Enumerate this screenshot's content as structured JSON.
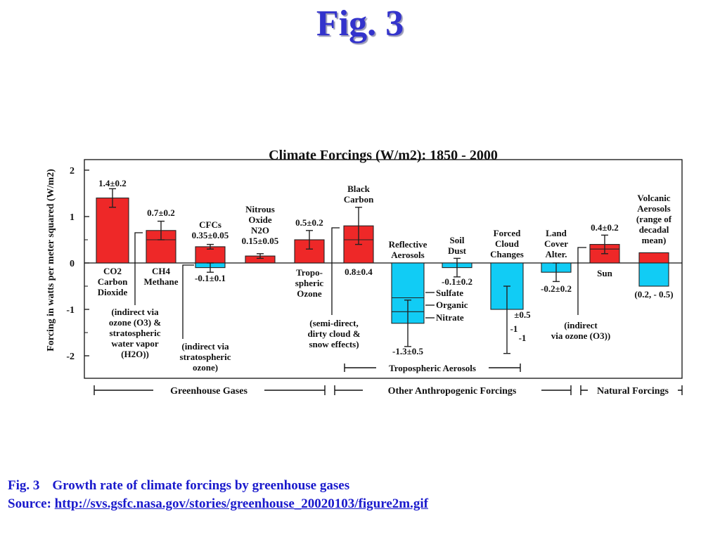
{
  "slide": {
    "title": "Fig. 3",
    "caption_number": "Fig. 3",
    "caption_text": "Growth rate of climate forcings by greenhouse gases",
    "source_label": "Source:",
    "source_url": "http://svs.gsfc.nasa.gov/stories/greenhouse_20020103/figure2m.gif"
  },
  "colors": {
    "positive": "#ee2828",
    "negative": "#11ccf5",
    "title": "#3333cc"
  },
  "chart_data": {
    "type": "bar",
    "title": "Climate Forcings (W/m2): 1850 - 2000",
    "ylabel": "Forcing in watts per meter squared (W/m2)",
    "ylim": [
      -2.5,
      2
    ],
    "yticks": [
      2,
      1,
      0,
      -1,
      -2
    ],
    "bars": [
      {
        "id": "co2",
        "value": 1.4,
        "err": 0.2,
        "color": "positive"
      },
      {
        "id": "ch4",
        "value": 0.7,
        "err": 0.2,
        "color": "positive",
        "mid": 0.5
      },
      {
        "id": "cfcs",
        "value": 0.35,
        "err": 0.05,
        "color": "positive"
      },
      {
        "id": "cfcs-ozone",
        "value": -0.1,
        "err": 0.1,
        "color": "negative"
      },
      {
        "id": "n2o",
        "value": 0.15,
        "err": 0.05,
        "color": "positive"
      },
      {
        "id": "trop-ozone",
        "value": 0.5,
        "err": 0.2,
        "color": "positive"
      },
      {
        "id": "black-carbon",
        "value": 0.8,
        "err": 0.4,
        "color": "positive",
        "mid": 0.5
      },
      {
        "id": "reflective-aerosols",
        "value": -1.3,
        "err": 0.5,
        "color": "negative",
        "segments": [
          -0.75,
          -1.05
        ]
      },
      {
        "id": "soil-dust",
        "value": -0.1,
        "err": 0.2,
        "color": "negative"
      },
      {
        "id": "forced-cloud",
        "value": -1.0,
        "err_low": -1.95,
        "err_high": -0.5,
        "color": "negative"
      },
      {
        "id": "land-cover",
        "value": -0.2,
        "err": 0.2,
        "color": "negative"
      },
      {
        "id": "sun",
        "value": 0.4,
        "err": 0.2,
        "color": "positive",
        "mid": 0.3
      },
      {
        "id": "volcanic-pos",
        "value": 0.22,
        "color": "positive"
      },
      {
        "id": "volcanic-neg",
        "value": -0.5,
        "color": "negative"
      }
    ],
    "labels": {
      "co2_value": "1.4±0.2",
      "co2_l1": "CO2",
      "co2_l2": "Carbon",
      "co2_l3": "Dioxide",
      "ch4_value": "0.7±0.2",
      "ch4_l1": "CH4",
      "ch4_l2": "Methane",
      "ch4_note1": "(indirect via",
      "ch4_note2": "ozone (O3) &",
      "ch4_note3": "stratospheric",
      "ch4_note4": "water vapor",
      "ch4_note5": "(H2O))",
      "cfcs_l1": "CFCs",
      "cfcs_value": "0.35±0.05",
      "cfcs_ozone_value": "-0.1±0.1",
      "cfcs_note1": "(indirect via",
      "cfcs_note2": "stratospheric",
      "cfcs_note3": "ozone)",
      "n2o_l1": "Nitrous",
      "n2o_l2": "Oxide",
      "n2o_l3": "N2O",
      "n2o_value": "0.15±0.05",
      "ozone_value": "0.5±0.2",
      "ozone_l1": "Tropo-",
      "ozone_l2": "spheric",
      "ozone_l3": "Ozone",
      "bc_l1": "Black",
      "bc_l2": "Carbon",
      "bc_value": "0.8±0.4",
      "bc_note1": "(semi-direct,",
      "bc_note2": "dirty cloud &",
      "bc_note3": "snow effects)",
      "ra_l1": "Reflective",
      "ra_l2": "Aerosols",
      "ra_sulfate": "Sulfate",
      "ra_organic": "Organic",
      "ra_nitrate": "Nitrate",
      "ra_value": "-1.3±0.5",
      "dust_l1": "Soil",
      "dust_l2": "Dust",
      "dust_value": "-0.1±0.2",
      "cloud_l1": "Forced",
      "cloud_l2": "Cloud",
      "cloud_l3": "Changes",
      "cloud_pm": "±0.5",
      "cloud_m1a": "-1",
      "cloud_m1b": "-1",
      "land_l1": "Land",
      "land_l2": "Cover",
      "land_l3": "Alter.",
      "land_value": "-0.2±0.2",
      "land_note1": "(indirect",
      "land_note2": "via ozone (O3))",
      "sun_value": "0.4±0.2",
      "sun_label": "Sun",
      "volc_l1": "Volcanic",
      "volc_l2": "Aerosols",
      "volc_l3": "(range of",
      "volc_l4": "decadal",
      "volc_l5": "mean)",
      "volc_range": "(0.2, - 0.5)",
      "group_trop": "Tropospheric Aerosols",
      "group_ghg": "Greenhouse Gases",
      "group_other": "Other Anthropogenic Forcings",
      "group_natural": "Natural Forcings"
    }
  }
}
